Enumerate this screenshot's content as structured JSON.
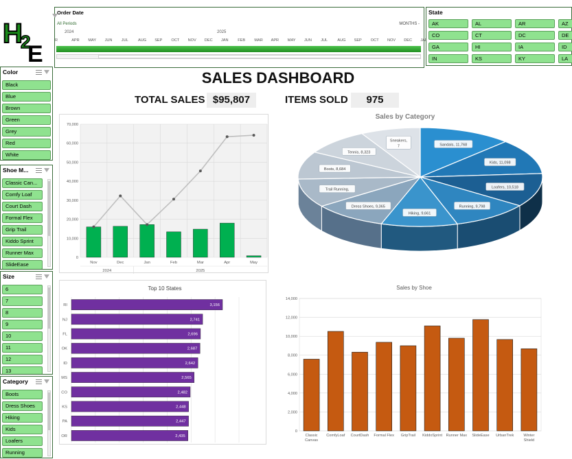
{
  "logo": {
    "text_h": "H",
    "text_2": "2",
    "text_e": "E"
  },
  "timeline": {
    "title": "Order Date",
    "periods_label": "All Periods",
    "mode_label": "MONTHS -",
    "years": [
      "2024",
      "2025"
    ],
    "months": [
      "R",
      "APR",
      "MAY",
      "JUN",
      "JUL",
      "AUG",
      "SEP",
      "OCT",
      "NOV",
      "DEC",
      "JAN",
      "FEB",
      "MAR",
      "APR",
      "MAY",
      "JUN",
      "JUL",
      "AUG",
      "SEP",
      "OCT",
      "NOV",
      "DEC",
      "JAN",
      "R"
    ]
  },
  "state": {
    "title": "State",
    "items": [
      "AK",
      "AL",
      "AR",
      "AZ",
      "CO",
      "CT",
      "DC",
      "DE",
      "GA",
      "HI",
      "IA",
      "ID",
      "IN",
      "KS",
      "KY",
      "LA"
    ]
  },
  "color_slicer": {
    "title": "Color",
    "items": [
      "Black",
      "Blue",
      "Brown",
      "Green",
      "Grey",
      "Red",
      "White"
    ]
  },
  "shoe_slicer": {
    "title": "Shoe M...",
    "items": [
      "Classic Can...",
      "Comfy Loaf",
      "Court Dash",
      "Formal Flex",
      "Grip Trail",
      "Kiddo Sprint",
      "Runner Max",
      "SlideEase"
    ]
  },
  "size_slicer": {
    "title": "Size",
    "items": [
      "6",
      "7",
      "8",
      "9",
      "10",
      "11",
      "12",
      "13"
    ]
  },
  "category_slicer": {
    "title": "Category",
    "items": [
      "Boots",
      "Dress Shoes",
      "Hiking",
      "Kids",
      "Loafers",
      "Running"
    ]
  },
  "dashboard": {
    "title": "SALES DASHBOARD",
    "total_sales_label": "TOTAL SALES",
    "total_sales_value": "$95,807",
    "items_sold_label": "ITEMS SOLD",
    "items_sold_value": "975"
  },
  "colors": {
    "accent_green": "#8fe28f",
    "bar_green": "#00b050",
    "bar_purple": "#7030a0",
    "bar_orange": "#c55a11",
    "pie_dark": "#1f4e79"
  },
  "chart_data": [
    {
      "type": "bar",
      "id": "monthly",
      "title": "",
      "categories": [
        "Nov",
        "Dec",
        "Jan",
        "Feb",
        "Mar",
        "Apr",
        "May"
      ],
      "year_labels": [
        {
          "label": "2024",
          "from": 0,
          "to": 1
        },
        {
          "label": "2025",
          "from": 2,
          "to": 6
        }
      ],
      "series": [
        {
          "values": [
            16000,
            16300,
            17200,
            13400,
            14800,
            18000,
            800
          ]
        },
        {
          "values": [
            16000,
            32300,
            17200,
            30600,
            45400,
            63400,
            64200
          ]
        }
      ],
      "ylim": [
        0,
        70000
      ],
      "yticks": [
        "0",
        "10,000",
        "20,000",
        "30,000",
        "40,000",
        "50,000",
        "60,000",
        "70,000"
      ]
    },
    {
      "type": "pie",
      "id": "category",
      "title": "Sales by Category",
      "slices": [
        {
          "label": "Sandals, 11,768",
          "value": 11768
        },
        {
          "label": "Kids, 11,098",
          "value": 11098
        },
        {
          "label": "Loafers, 10,518",
          "value": 10518
        },
        {
          "label": "Running, 9,798",
          "value": 9798
        },
        {
          "label": "Hiking, 9,661",
          "value": 9661
        },
        {
          "label": "Dress Shoes, 9,365",
          "value": 9365
        },
        {
          "label": "Trail Running,",
          "value": 9000
        },
        {
          "label": "Boots, 8,684",
          "value": 8684
        },
        {
          "label": "Tennis, 8,323",
          "value": 8323
        },
        {
          "label": "Sneakers, 7,580",
          "value": 7580
        }
      ]
    },
    {
      "type": "bar",
      "id": "states",
      "title": "Top 10 States",
      "categories": [
        "RI",
        "NJ",
        "FL",
        "OK",
        "ID",
        "MS",
        "CO",
        "KS",
        "PA",
        "OR"
      ],
      "values": [
        3156,
        2741,
        2696,
        2687,
        2642,
        2565,
        2482,
        2448,
        2447,
        2435
      ],
      "value_labels": [
        "3,156",
        "2,741",
        "2,696",
        "2,687",
        "2,642",
        "2,565",
        "2,482",
        "2,448",
        "2,447",
        "2,435"
      ],
      "xlim": [
        0,
        3500
      ]
    },
    {
      "type": "bar",
      "id": "shoe",
      "title": "Sales by Shoe",
      "categories": [
        "Classic Canvas",
        "ComfyLoaf",
        "CourtDash",
        "Formal Flex",
        "GripTrail",
        "KiddoSprint",
        "Runner Max",
        "SlideEase",
        "UrbanTrek",
        "Winter Shield"
      ],
      "values": [
        7580,
        10518,
        8323,
        9365,
        9000,
        11098,
        9798,
        11768,
        9661,
        8684
      ],
      "ylim": [
        0,
        14000
      ],
      "yticks": [
        "0",
        "2,000",
        "4,000",
        "6,000",
        "8,000",
        "10,000",
        "12,000",
        "14,000"
      ]
    }
  ]
}
